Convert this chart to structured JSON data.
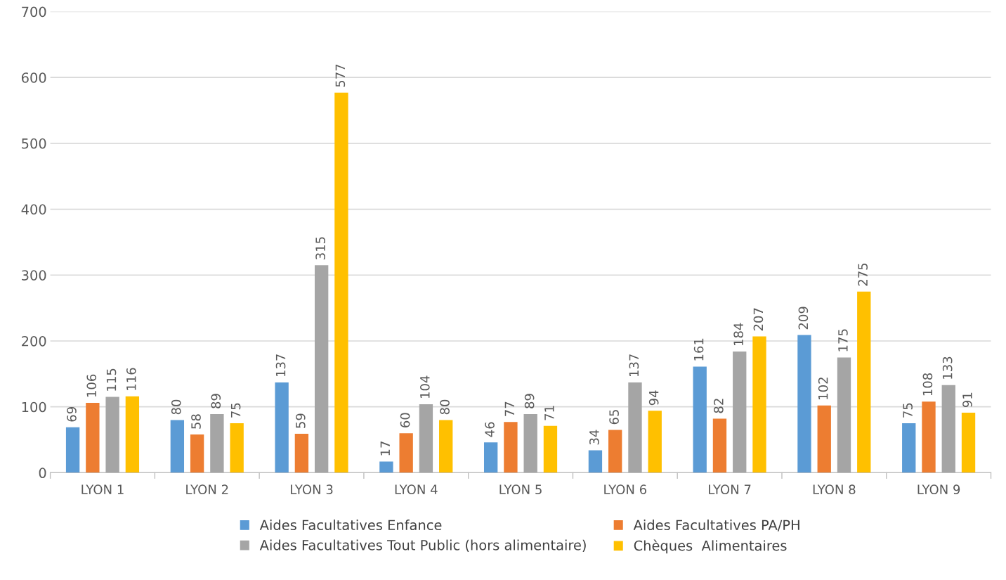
{
  "chart_data": {
    "type": "bar",
    "categories": [
      "LYON 1",
      "LYON 2",
      "LYON 3",
      "LYON 4",
      "LYON 5",
      "LYON 6",
      "LYON 7",
      "LYON 8",
      "LYON 9"
    ],
    "series": [
      {
        "name": "Aides Facultatives Enfance",
        "color": "#5b9bd5",
        "values": [
          69,
          80,
          137,
          17,
          46,
          34,
          161,
          209,
          75
        ]
      },
      {
        "name": "Aides Facultatives PA/PH",
        "color": "#ed7d31",
        "values": [
          106,
          58,
          59,
          60,
          77,
          65,
          82,
          102,
          108
        ]
      },
      {
        "name": "Aides Facultatives Tout Public (hors alimentaire)",
        "color": "#a5a5a5",
        "values": [
          115,
          89,
          315,
          104,
          89,
          137,
          184,
          175,
          133
        ]
      },
      {
        "name": "Chèques  Alimentaires",
        "color": "#ffc000",
        "values": [
          116,
          75,
          577,
          80,
          71,
          94,
          207,
          275,
          91
        ]
      }
    ],
    "ylim": [
      0,
      700
    ],
    "yticks": [
      0,
      100,
      200,
      300,
      400,
      500,
      600,
      700
    ],
    "grid": "y",
    "legend": "bottom",
    "data_labels": true
  }
}
